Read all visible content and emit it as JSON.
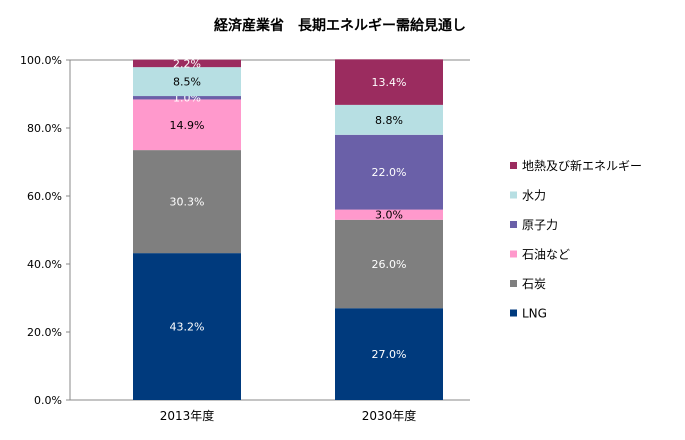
{
  "chart_data": {
    "type": "bar",
    "stacked": true,
    "title": "経済産業省　長期エネルギー需給見通し",
    "categories": [
      "2013年度",
      "2030年度"
    ],
    "ylim": [
      0,
      100
    ],
    "yticks": [
      "0.0%",
      "20.0%",
      "40.0%",
      "60.0%",
      "80.0%",
      "100.0%"
    ],
    "grid": false,
    "legend_position": "right",
    "series": [
      {
        "name": "LNG",
        "values": [
          43.2,
          27.0
        ],
        "labels": [
          "43.2%",
          "27.0%"
        ],
        "color": "#003a7d",
        "text_color": "#ffffff"
      },
      {
        "name": "石炭",
        "values": [
          30.3,
          26.0
        ],
        "labels": [
          "30.3%",
          "26.0%"
        ],
        "color": "#7f7f7f",
        "text_color": "#ffffff"
      },
      {
        "name": "石油など",
        "values": [
          14.9,
          3.0
        ],
        "labels": [
          "14.9%",
          "3.0%"
        ],
        "color": "#ff99cc",
        "text_color": "#000000"
      },
      {
        "name": "原子力",
        "values": [
          1.0,
          22.0
        ],
        "labels": [
          "1.0%",
          "22.0%"
        ],
        "color": "#6a60a8",
        "text_color": "#ffffff"
      },
      {
        "name": "水力",
        "values": [
          8.5,
          8.8
        ],
        "labels": [
          "8.5%",
          "8.8%"
        ],
        "color": "#b7dfe3",
        "text_color": "#000000"
      },
      {
        "name": "地熱及び新エネルギー",
        "values": [
          2.2,
          13.4
        ],
        "labels": [
          "2.2%",
          "13.4%"
        ],
        "color": "#9b2c5f",
        "text_color": "#ffffff"
      }
    ]
  }
}
